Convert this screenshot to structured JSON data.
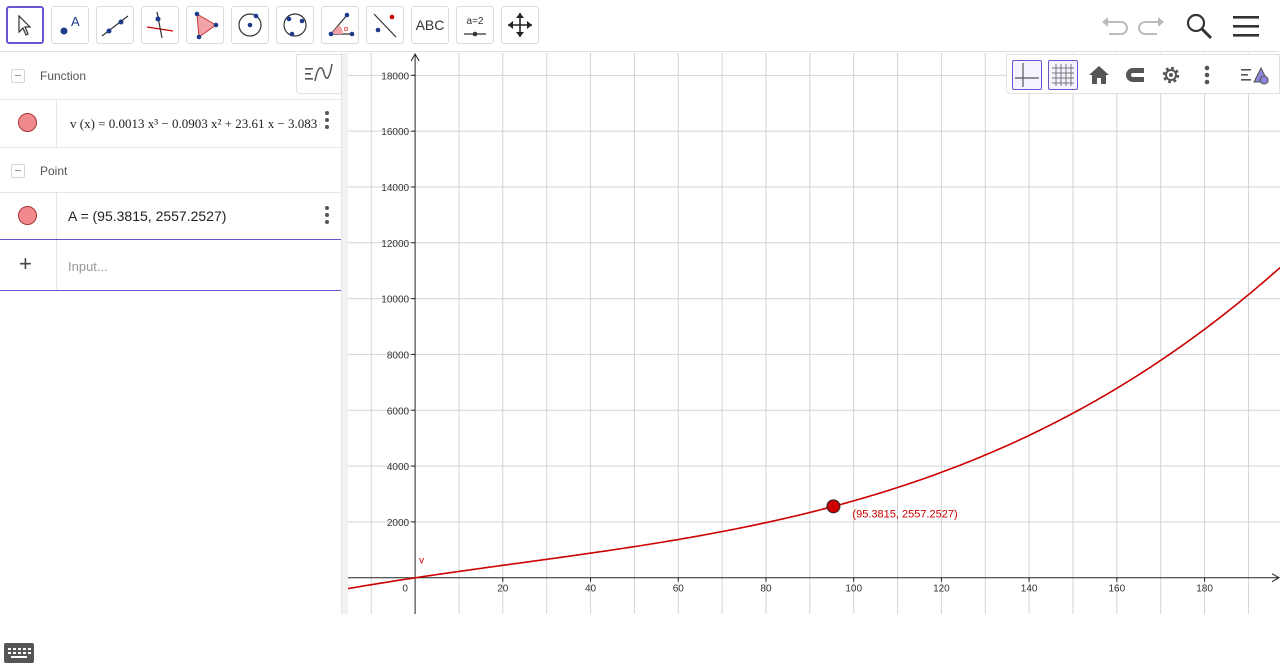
{
  "toolbar": {
    "tools": [
      "move",
      "point",
      "line",
      "perpendicular-line",
      "polygon",
      "circle-center-point",
      "circle-through-3-points",
      "angle",
      "reflect",
      "text",
      "slider",
      "move-graphics-view"
    ],
    "text_tool_label": "ABC",
    "slider_tool_label": "a=2"
  },
  "algebra": {
    "groups": [
      {
        "label": "Function",
        "item": {
          "lhs": "v (x)",
          "expr": "0.0013 x³ − 0.0903 x² + 23.61 x − 3.083"
        }
      },
      {
        "label": "Point",
        "item": {
          "text": "A = (95.3815, 2557.2527)"
        }
      }
    ],
    "input_placeholder": "Input..."
  },
  "chart_data": {
    "type": "line",
    "function": {
      "name": "v",
      "coefficients": [
        0.0013,
        -0.0903,
        23.61,
        -3.083
      ],
      "color": "#cc0000"
    },
    "point": {
      "name": "A",
      "x": 95.3815,
      "y": 2557.2527,
      "label": "(95.3815, 2557.2527)",
      "color": "#cc0000"
    },
    "x_ticks": [
      0,
      20,
      40,
      60,
      80,
      100,
      120,
      140,
      160,
      180
    ],
    "y_ticks": [
      2000,
      4000,
      6000,
      8000,
      10000,
      12000,
      14000,
      16000,
      18000
    ],
    "xlim": [
      -15.3,
      197.2
    ],
    "ylim": [
      -1300,
      18800
    ],
    "grid": true
  },
  "colors": {
    "accent": "#6557d2",
    "function": "#cc0000",
    "grid": "#d4d4d4"
  }
}
